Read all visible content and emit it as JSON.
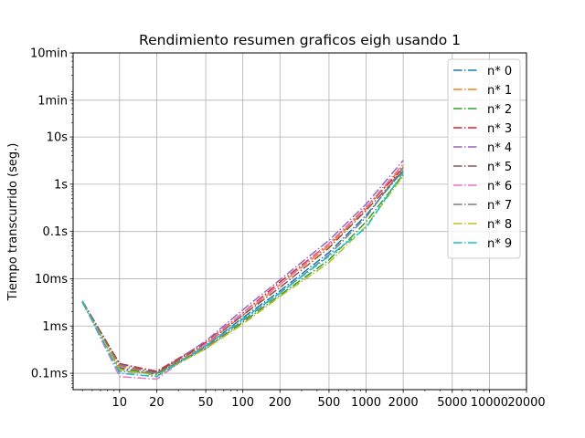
{
  "chart_data": {
    "type": "line",
    "title": "Rendimiento  resumen graficos eigh usando 1",
    "xlabel": "",
    "ylabel": "Tiempo transcurrido (seg.)",
    "x_scale": "log",
    "y_scale": "log",
    "xlim": [
      4.2,
      20000
    ],
    "ylim": [
      4.5e-05,
      600
    ],
    "grid": true,
    "legend_position": "top-right",
    "x_ticks": [
      {
        "value": 10,
        "label": "10"
      },
      {
        "value": 20,
        "label": "20"
      },
      {
        "value": 50,
        "label": "50"
      },
      {
        "value": 100,
        "label": "100"
      },
      {
        "value": 200,
        "label": "200"
      },
      {
        "value": 500,
        "label": "500"
      },
      {
        "value": 1000,
        "label": "1000"
      },
      {
        "value": 2000,
        "label": "2000"
      },
      {
        "value": 5000,
        "label": "5000"
      },
      {
        "value": 10000,
        "label": "10000"
      },
      {
        "value": 20000,
        "label": "20000"
      }
    ],
    "y_ticks": [
      {
        "value": 0.0001,
        "label": "0.1ms"
      },
      {
        "value": 0.001,
        "label": "1ms"
      },
      {
        "value": 0.01,
        "label": "10ms"
      },
      {
        "value": 0.1,
        "label": "0.1s"
      },
      {
        "value": 1,
        "label": "1s"
      },
      {
        "value": 10,
        "label": "10s"
      },
      {
        "value": 60,
        "label": "1min"
      },
      {
        "value": 600,
        "label": "10min"
      }
    ],
    "x": [
      5,
      10,
      20,
      50,
      100,
      200,
      500,
      1000,
      2000
    ],
    "series": [
      {
        "name": "n* 0",
        "color": "#1f77b4",
        "values": [
          0.0033,
          0.00013,
          9.5e-05,
          0.00037,
          0.0015,
          0.0055,
          0.036,
          0.22,
          2.0
        ]
      },
      {
        "name": "n* 1",
        "color": "#ff7f0e",
        "values": [
          0.0033,
          0.00014,
          0.0001,
          0.0004,
          0.0017,
          0.0075,
          0.05,
          0.3,
          2.5
        ]
      },
      {
        "name": "n* 2",
        "color": "#2ca02c",
        "values": [
          0.0031,
          0.00012,
          0.0001,
          0.00033,
          0.0012,
          0.0045,
          0.025,
          0.16,
          1.6
        ]
      },
      {
        "name": "n* 3",
        "color": "#d62728",
        "values": [
          0.0033,
          0.00016,
          0.00011,
          0.00045,
          0.0019,
          0.0085,
          0.055,
          0.33,
          2.2
        ]
      },
      {
        "name": "n* 4",
        "color": "#9467bd",
        "values": [
          0.0034,
          0.00015,
          0.0001,
          0.00048,
          0.0022,
          0.0095,
          0.065,
          0.38,
          3.2
        ]
      },
      {
        "name": "n* 5",
        "color": "#8c564b",
        "values": [
          0.0033,
          0.00016,
          0.000105,
          0.00042,
          0.0017,
          0.0065,
          0.045,
          0.28,
          1.9
        ]
      },
      {
        "name": "n* 6",
        "color": "#e377c2",
        "values": [
          0.0033,
          8.5e-05,
          7.5e-05,
          0.00042,
          0.0019,
          0.0075,
          0.055,
          0.32,
          2.7
        ]
      },
      {
        "name": "n* 7",
        "color": "#7f7f7f",
        "values": [
          0.0033,
          0.00011,
          0.0001,
          0.00035,
          0.0013,
          0.005,
          0.032,
          0.2,
          2.3
        ]
      },
      {
        "name": "n* 8",
        "color": "#bcbd22",
        "values": [
          0.0032,
          0.00012,
          9e-05,
          0.00033,
          0.0011,
          0.0042,
          0.022,
          0.13,
          1.5
        ]
      },
      {
        "name": "n* 9",
        "color": "#17becf",
        "values": [
          0.0033,
          0.0001,
          8.5e-05,
          0.00038,
          0.0014,
          0.005,
          0.03,
          0.12,
          1.8
        ]
      }
    ]
  }
}
